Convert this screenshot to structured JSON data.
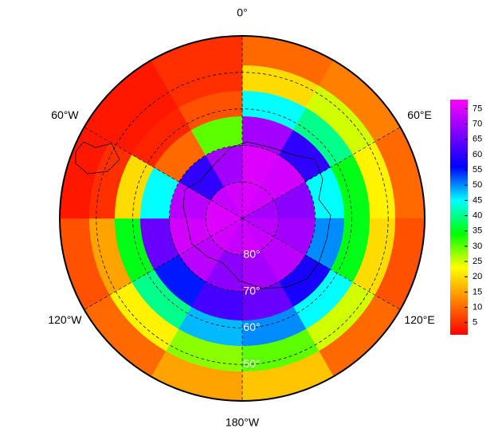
{
  "map": {
    "type": "polar-heatmap",
    "lon_edges": [
      0,
      30,
      60,
      90,
      120,
      150,
      180,
      210,
      240,
      270,
      300,
      330,
      360
    ],
    "lat_edges": [
      -90,
      -80,
      -70,
      -62,
      -55,
      -48,
      -40
    ],
    "values": [
      [
        75,
        74,
        70,
        72,
        73,
        74,
        73,
        74,
        75,
        75,
        73,
        74
      ],
      [
        75,
        74,
        68,
        70,
        72,
        70,
        68,
        72,
        74,
        72,
        60,
        70
      ],
      [
        70,
        60,
        45,
        50,
        58,
        65,
        62,
        55,
        65,
        45,
        10,
        30
      ],
      [
        45,
        40,
        35,
        35,
        45,
        50,
        48,
        40,
        35,
        20,
        4,
        8
      ],
      [
        20,
        25,
        22,
        20,
        25,
        30,
        28,
        22,
        15,
        5,
        3,
        5
      ],
      [
        10,
        12,
        10,
        8,
        10,
        18,
        15,
        10,
        8,
        3,
        3,
        5
      ]
    ],
    "clim": [
      1,
      78
    ],
    "colormap": [
      "#ff0000",
      "#ff8000",
      "#ffff00",
      "#00ff00",
      "#00ffff",
      "#0000ff",
      "#8000ff",
      "#ff00ff"
    ],
    "lon_ticks": [
      {
        "value": 0,
        "label": "0°"
      },
      {
        "value": 60,
        "label": "60°E"
      },
      {
        "value": 120,
        "label": "120°E"
      },
      {
        "value": 180,
        "label": "180°W"
      },
      {
        "value": 240,
        "label": "120°W"
      },
      {
        "value": 300,
        "label": "60°W"
      }
    ],
    "lat_ticks": [
      {
        "value": -80,
        "label": "80°"
      },
      {
        "value": -70,
        "label": "70°"
      },
      {
        "value": -60,
        "label": "60°"
      },
      {
        "value": -50,
        "label": "50°"
      }
    ],
    "colorbar_ticks": [
      5,
      10,
      15,
      20,
      25,
      30,
      35,
      40,
      45,
      50,
      55,
      60,
      65,
      70,
      75
    ]
  }
}
